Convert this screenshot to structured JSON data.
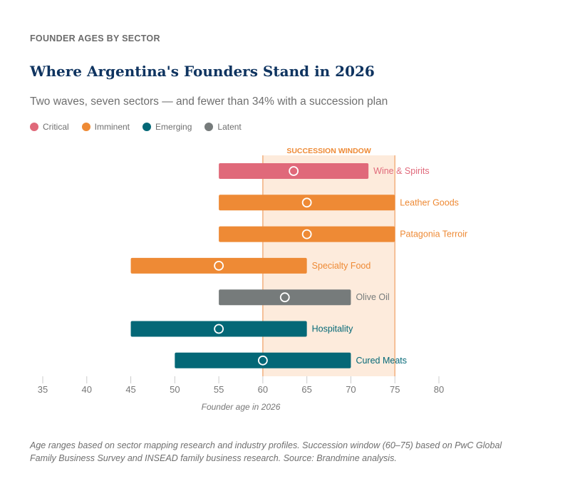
{
  "kicker": "FOUNDER AGES BY SECTOR",
  "title": "Where Argentina's Founders Stand in 2026",
  "subtitle": "Two waves, seven sectors — and fewer than 34% with a succession plan",
  "legend": [
    {
      "label": "Critical",
      "color": "#e0697a"
    },
    {
      "label": "Imminent",
      "color": "#ee8a35"
    },
    {
      "label": "Emerging",
      "color": "#046877"
    },
    {
      "label": "Latent",
      "color": "#767b7b"
    }
  ],
  "chart_data": {
    "type": "range-bar",
    "xlabel": "Founder age in 2026",
    "xlim": [
      35,
      80
    ],
    "xticks": [
      35,
      40,
      45,
      50,
      55,
      60,
      65,
      70,
      75,
      80
    ],
    "grid": false,
    "shaded_region": {
      "label": "SUCCESSION WINDOW",
      "from": 60,
      "to": 75,
      "color": "#fdebdc"
    },
    "series": [
      {
        "category": "Wine & Spirits",
        "group": "Critical",
        "min": 55,
        "max": 72,
        "marker": 63.5
      },
      {
        "category": "Leather Goods",
        "group": "Imminent",
        "min": 55,
        "max": 75,
        "marker": 65
      },
      {
        "category": "Patagonia Terroir",
        "group": "Imminent",
        "min": 55,
        "max": 75,
        "marker": 65
      },
      {
        "category": "Specialty Food",
        "group": "Imminent",
        "min": 45,
        "max": 65,
        "marker": 55
      },
      {
        "category": "Olive Oil",
        "group": "Latent",
        "min": 55,
        "max": 70,
        "marker": 62.5
      },
      {
        "category": "Hospitality",
        "group": "Emerging",
        "min": 45,
        "max": 65,
        "marker": 55
      },
      {
        "category": "Cured Meats",
        "group": "Emerging",
        "min": 50,
        "max": 70,
        "marker": 60
      }
    ]
  },
  "note": "Age ranges based on sector mapping research and industry profiles. Succession window (60–75) based on PwC Global Family Business Survey and INSEAD family business research. Source: Brandmine analysis."
}
